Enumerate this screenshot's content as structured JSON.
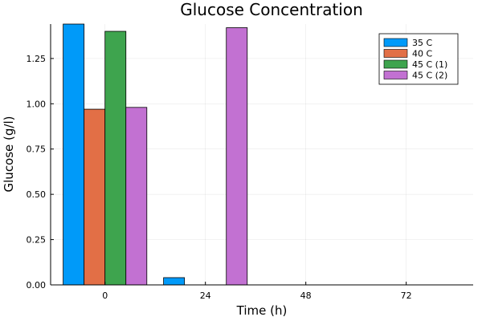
{
  "chart_data": {
    "type": "bar",
    "title": "Glucose Concentration",
    "xlabel": "Time (h)",
    "ylabel": "Glucose (g/l)",
    "categories": [
      0,
      24,
      48,
      72
    ],
    "x_ticks": [
      "0",
      "24",
      "48",
      "72"
    ],
    "y_ticks": [
      "0.00",
      "0.25",
      "0.50",
      "0.75",
      "1.00",
      "1.25"
    ],
    "y_tick_values": [
      0,
      0.25,
      0.5,
      0.75,
      1.0,
      1.25
    ],
    "xlim": [
      -13,
      88
    ],
    "ylim": [
      0,
      1.44
    ],
    "grid": true,
    "legend_position": "top-right",
    "series": [
      {
        "name": "35 C",
        "color": "#009af9",
        "values": [
          1.44,
          0.04,
          0.0,
          0.0
        ]
      },
      {
        "name": "40 C",
        "color": "#e26f46",
        "values": [
          0.97,
          0.0,
          0.0,
          0.0
        ]
      },
      {
        "name": "45 C (1)",
        "color": "#3ea44e",
        "values": [
          1.4,
          0.0,
          0.0,
          0.0
        ]
      },
      {
        "name": "45 C (2)",
        "color": "#c271d2",
        "values": [
          0.98,
          1.42,
          0.0,
          0.0
        ]
      }
    ]
  }
}
